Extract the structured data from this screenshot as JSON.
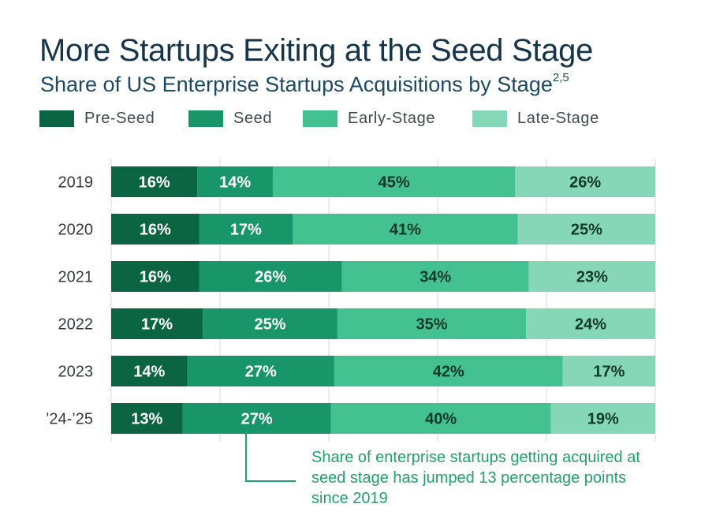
{
  "header": {
    "title": "More Startups Exiting at the Seed Stage",
    "subtitle": "Share of US Enterprise Startups Acquisitions by Stage",
    "subtitle_sup": "2,5"
  },
  "colors": {
    "pre_seed": "#0b6442",
    "seed": "#18966a",
    "early_stage": "#44c191",
    "late_stage": "#86d6b8",
    "grid": "#d4d8dc",
    "callout": "#1fa36a"
  },
  "chart_data": {
    "type": "bar",
    "orientation": "horizontal",
    "stacked": true,
    "title": "More Startups Exiting at the Seed Stage",
    "subtitle": "Share of US Enterprise Startups Acquisitions by Stage",
    "categories": [
      "2019",
      "2020",
      "2021",
      "2022",
      "2023",
      "’24-’25"
    ],
    "series": [
      {
        "name": "Pre-Seed",
        "values": [
          16,
          16,
          16,
          17,
          14,
          13
        ]
      },
      {
        "name": "Seed",
        "values": [
          14,
          17,
          26,
          25,
          27,
          27
        ]
      },
      {
        "name": "Early-Stage",
        "values": [
          45,
          41,
          34,
          35,
          42,
          40
        ]
      },
      {
        "name": "Late-Stage",
        "values": [
          26,
          25,
          23,
          24,
          17,
          19
        ]
      }
    ],
    "xlim": [
      0,
      100
    ],
    "value_format": "percent",
    "legend_position": "top",
    "grid": true,
    "annotation": "Share of enterprise startups getting acquired at seed stage has jumped 13 percentage points since 2019"
  }
}
